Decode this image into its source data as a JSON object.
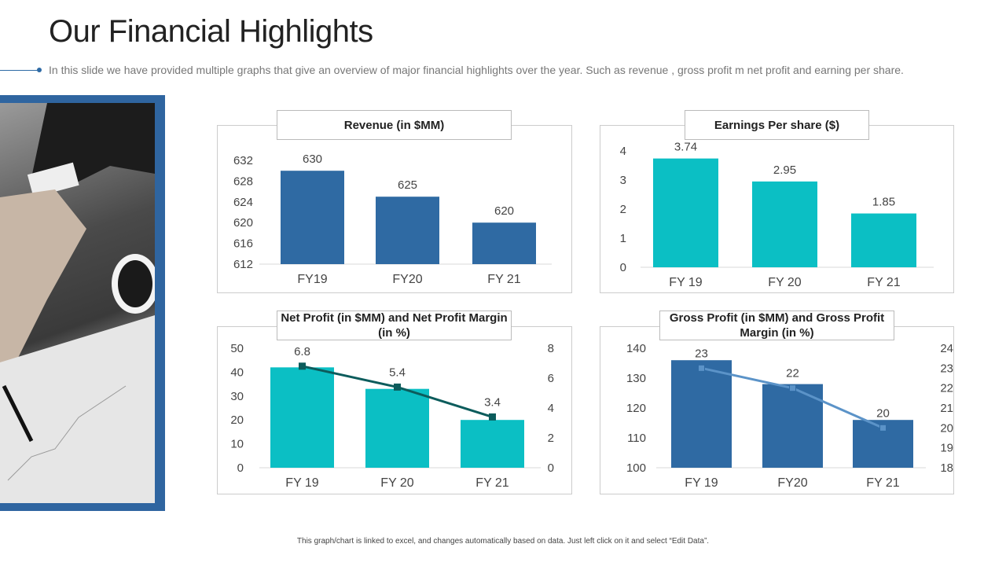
{
  "header": {
    "title": "Our Financial Highlights",
    "subtitle": "In this slide we have provided multiple graphs that give an overview of major financial highlights over the year. Such as revenue , gross profit m net profit and earning per share."
  },
  "footer": "This graph/chart is linked to excel, and changes automatically based on data. Just left click on it and select “Edit Data”.",
  "chart_data": [
    {
      "type": "bar",
      "title": "Revenue (in $MM)",
      "categories": [
        "FY19",
        "FY20",
        "FY 21"
      ],
      "values": [
        630,
        625,
        620
      ],
      "data_labels": [
        "630",
        "625",
        "620"
      ],
      "ylim": [
        612,
        632
      ],
      "yticks": [
        "612",
        "616",
        "620",
        "624",
        "628",
        "632"
      ],
      "color": "#2f6aa3"
    },
    {
      "type": "bar",
      "title": "Earnings Per share ($)",
      "categories": [
        "FY 19",
        "FY 20",
        "FY 21"
      ],
      "values": [
        3.74,
        2.95,
        1.85
      ],
      "data_labels": [
        "3.74",
        "2.95",
        "1.85"
      ],
      "ylim": [
        0,
        4
      ],
      "yticks": [
        "0",
        "1",
        "2",
        "3",
        "4"
      ],
      "color": "#0bbfc4"
    },
    {
      "type": "bar+line",
      "title": "Net Profit (in $MM) and Net Profit Margin (in %)",
      "categories": [
        "FY 19",
        "FY 20",
        "FY 21"
      ],
      "values": [
        42,
        33,
        20
      ],
      "line_values": [
        6.8,
        5.4,
        3.4
      ],
      "data_labels": [
        "6.8",
        "5.4",
        "3.4"
      ],
      "ylim": [
        0,
        50
      ],
      "yticks": [
        "0",
        "10",
        "20",
        "30",
        "40",
        "50"
      ],
      "y2lim": [
        0,
        8
      ],
      "y2ticks": [
        "0",
        "2",
        "4",
        "6",
        "8"
      ],
      "color": "#0bbfc4",
      "line_color": "#0c5c5c"
    },
    {
      "type": "bar+line",
      "title": "Gross Profit (in $MM) and Gross Profit Margin (in %)",
      "categories": [
        "FY 19",
        "FY20",
        "FY 21"
      ],
      "values": [
        136,
        128,
        116
      ],
      "line_values": [
        23,
        22,
        20
      ],
      "data_labels": [
        "23",
        "22",
        "20"
      ],
      "ylim": [
        100,
        140
      ],
      "yticks": [
        "100",
        "110",
        "120",
        "130",
        "140"
      ],
      "y2lim": [
        18,
        24
      ],
      "y2ticks": [
        "18",
        "19",
        "20",
        "21",
        "22",
        "23",
        "24"
      ],
      "color": "#2f6aa3",
      "line_color": "#5b93c8"
    }
  ]
}
